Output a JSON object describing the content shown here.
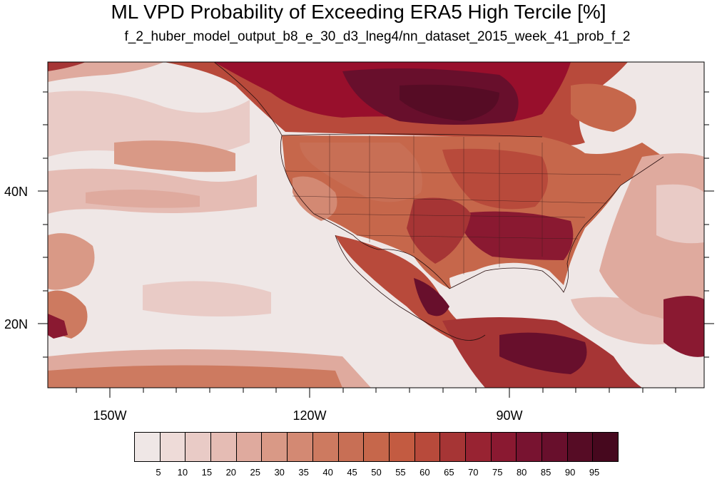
{
  "title": "ML VPD Probability of Exceeding ERA5 High Tercile [%]",
  "subtitle": "f_2_huber_model_output_b8_e_30_d3_lneg4/nn_dataset_2015_week_41_prob_f_2",
  "lat_labels": [
    "40N",
    "20N"
  ],
  "lon_labels": [
    "150W",
    "120W",
    "90W"
  ],
  "colorbar": {
    "levels": [
      "5",
      "10",
      "15",
      "20",
      "25",
      "30",
      "35",
      "40",
      "45",
      "50",
      "55",
      "60",
      "65",
      "70",
      "75",
      "80",
      "85",
      "90",
      "95"
    ],
    "colors": [
      "#efe7e6",
      "#eedbd8",
      "#e9cbc6",
      "#e5bcb4",
      "#dfaa9e",
      "#d99986",
      "#d38973",
      "#cd7a60",
      "#c86f55",
      "#c6674b",
      "#c35b41",
      "#b84a3b",
      "#a63535",
      "#982332",
      "#8a1931",
      "#781330",
      "#680f2c",
      "#560c25",
      "#46081e"
    ]
  }
}
